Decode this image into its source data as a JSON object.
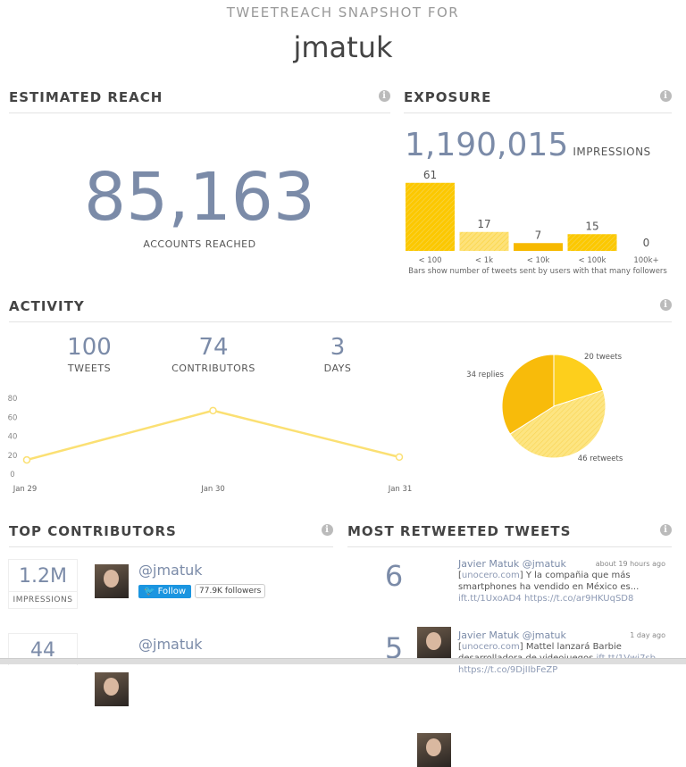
{
  "header": {
    "subtitle": "TWEETREACH SNAPSHOT FOR",
    "username": "jmatuk"
  },
  "reach": {
    "title": "ESTIMATED REACH",
    "value": "85,163",
    "label": "ACCOUNTS REACHED",
    "info_icon": "info-icon"
  },
  "exposure": {
    "title": "EXPOSURE",
    "value": "1,190,015",
    "label": "IMPRESSIONS",
    "caption": "Bars show number of tweets sent by users with that many followers"
  },
  "activity": {
    "title": "ACTIVITY",
    "stats": [
      {
        "value": "100",
        "label": "TWEETS"
      },
      {
        "value": "74",
        "label": "CONTRIBUTORS"
      },
      {
        "value": "3",
        "label": "DAYS"
      }
    ]
  },
  "chart_data": [
    {
      "type": "bar",
      "categories": [
        "< 100",
        "< 1k",
        "< 10k",
        "< 100k",
        "100k+"
      ],
      "values": [
        61,
        17,
        7,
        15,
        0
      ],
      "colors": [
        "#fcc800",
        "#fde27a",
        "#f7b900",
        "#fcd23a",
        "#fcc800"
      ]
    },
    {
      "type": "line",
      "categories": [
        "Jan 29",
        "Jan 30",
        "Jan 31"
      ],
      "values": [
        15,
        67,
        18
      ],
      "yticks": [
        0,
        20,
        40,
        60,
        80
      ],
      "ylim": [
        0,
        80
      ],
      "color": "#fbe073",
      "grid": false
    },
    {
      "type": "pie",
      "labels": [
        "20 tweets",
        "46 retweets",
        "34 replies"
      ],
      "values": [
        20,
        46,
        34
      ],
      "colors": [
        "#fdcf1c",
        "#fde582",
        "#f8bb0a"
      ]
    }
  ],
  "contributors": {
    "title": "TOP CONTRIBUTORS",
    "items": [
      {
        "impressions": "1.2M",
        "impressions_label": "IMPRESSIONS",
        "handle": "@jmatuk",
        "follow": "Follow",
        "followers": "77.9K followers"
      },
      {
        "impressions": "44",
        "handle": "@jmatuk"
      }
    ]
  },
  "retweeted": {
    "title": "MOST RETWEETED TWEETS",
    "items": [
      {
        "count": "6",
        "name": "Javier Matuk @jmatuk",
        "time": "about 19 hours ago",
        "source": "unocero.com",
        "text": "Y la compañia que más smartphones ha vendido en México es...",
        "link1": "ift.tt/1UxoAD4",
        "link2": "https://t.co/ar9HKUqSD8"
      },
      {
        "count": "5",
        "name": "Javier Matuk @jmatuk",
        "time": "1 day ago",
        "source": "unocero.com",
        "text": "Mattel lanzará Barbie desarrolladora de videojuegos",
        "link1": "ift.tt/1Vwi7sb",
        "link2": "https://t.co/9DjIIbFeZP"
      }
    ]
  }
}
